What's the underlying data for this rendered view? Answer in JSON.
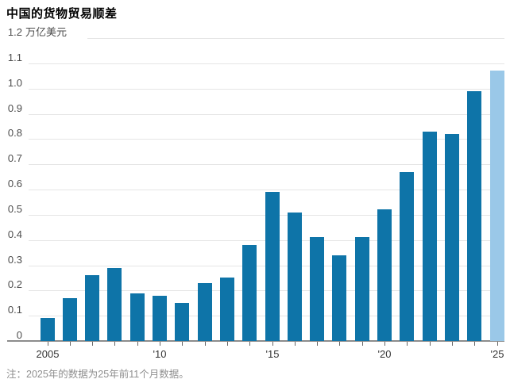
{
  "chart": {
    "title": "中国的货物贸易顺差",
    "unit_label": "万亿美元",
    "note": "注：2025年的数据为25年前11个月数据。"
  },
  "chart_data": {
    "type": "bar",
    "title": "中国的货物贸易顺差",
    "ylabel": "万亿美元",
    "categories": [
      2005,
      2006,
      2007,
      2008,
      2009,
      2010,
      2011,
      2012,
      2013,
      2014,
      2015,
      2016,
      2017,
      2018,
      2019,
      2020,
      2021,
      2022,
      2023,
      2024,
      2025
    ],
    "values": [
      0.09,
      0.17,
      0.26,
      0.29,
      0.19,
      0.18,
      0.15,
      0.23,
      0.25,
      0.38,
      0.59,
      0.51,
      0.41,
      0.34,
      0.41,
      0.52,
      0.67,
      0.83,
      0.82,
      0.99,
      1.07
    ],
    "ylim": [
      0,
      1.2
    ],
    "ytick_step": 0.1,
    "grid": true,
    "legend": "none",
    "xtick_labels": [
      {
        "index": 0,
        "label": "2005"
      },
      {
        "index": 5,
        "label": "'10"
      },
      {
        "index": 10,
        "label": "'15"
      },
      {
        "index": 15,
        "label": "'20"
      },
      {
        "index": 20,
        "label": "'25"
      }
    ],
    "bar_color": "#0e74a8",
    "highlight_color": "#9ac8e8",
    "highlight_index": 20,
    "note": "注：2025年的数据为25年前11个月数据。"
  }
}
